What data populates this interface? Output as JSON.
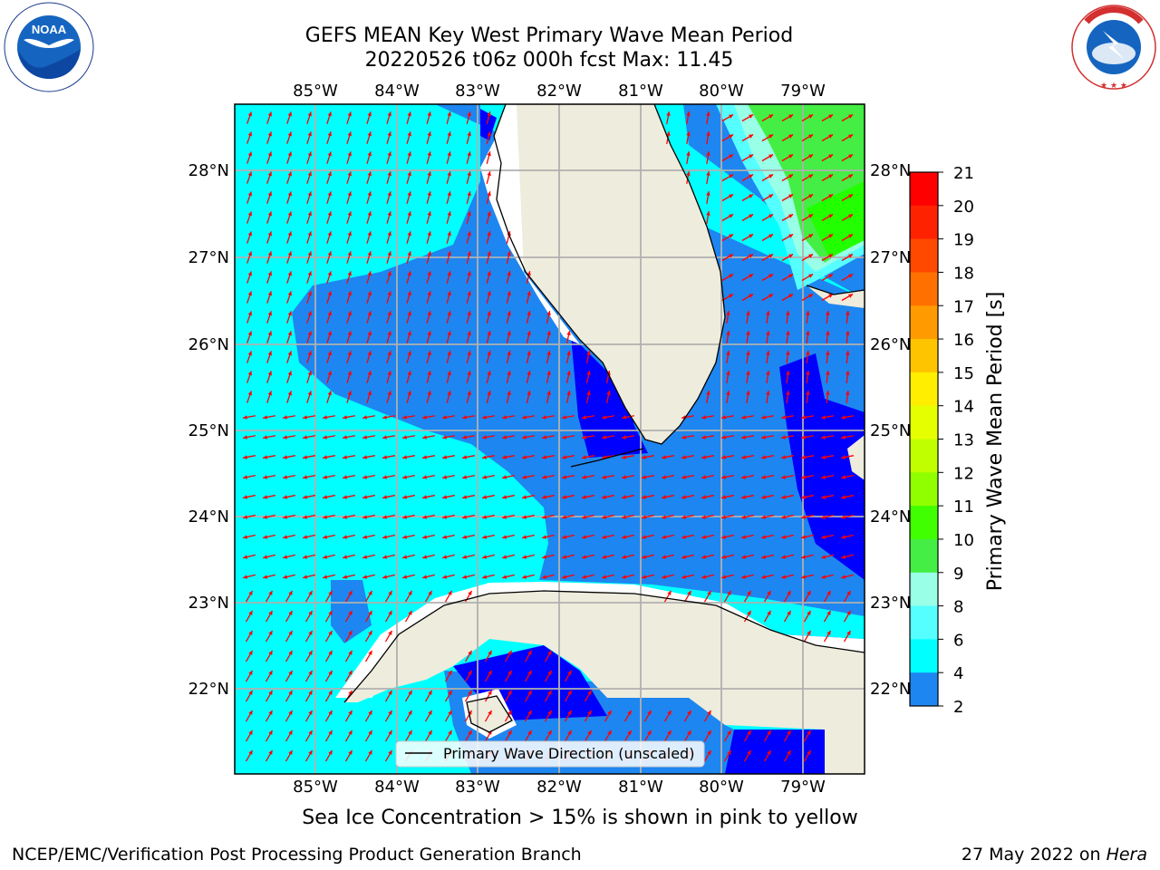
{
  "title": {
    "line1": "GEFS MEAN Key West Primary Wave Mean Period",
    "line2": "20220526 t06z 000h fcst   Max: 11.45"
  },
  "logos": {
    "left": "noaa-logo",
    "left_text": "NOAA",
    "right": "nws-logo",
    "right_ring_text": "NATIONAL WEATHER SERVICE"
  },
  "map": {
    "lon_labels": [
      "85°W",
      "84°W",
      "83°W",
      "82°W",
      "81°W",
      "80°W",
      "79°W"
    ],
    "lat_labels": [
      "28°N",
      "27°N",
      "26°N",
      "25°N",
      "24°N",
      "23°N",
      "22°N"
    ],
    "legend_label": "Primary Wave Direction (unscaled)",
    "colors": {
      "land": "#eeecdc",
      "c2_4": "#0000ff",
      "c4_6": "#1e86f0",
      "c6_8": "#00ffff",
      "c8_9": "#55ffff",
      "c9_10": "#99ffe6",
      "c10_11": "#44ee44",
      "c11_12": "#22ff00",
      "arrow": "#ff0000",
      "grid": "#b0b0b0"
    }
  },
  "colorbar": {
    "label": "Primary Wave Mean Period [s]",
    "ticks": [
      "21",
      "20",
      "19",
      "18",
      "17",
      "16",
      "15",
      "14",
      "13",
      "12",
      "11",
      "10",
      "9",
      "8",
      "6",
      "4",
      "2"
    ],
    "colors": [
      "#ff0000",
      "#ff2200",
      "#ff4800",
      "#ff7000",
      "#ff9a00",
      "#ffc400",
      "#ffee00",
      "#e6ff00",
      "#c0ff00",
      "#90ff00",
      "#40ff00",
      "#44ee44",
      "#99ffe6",
      "#55ffff",
      "#00ffff",
      "#1e86f0",
      "#0000ff"
    ]
  },
  "ice_note": "Sea Ice Concentration > 15% is shown in pink to yellow",
  "footer": {
    "left": "NCEP/EMC/Verification Post Processing Product Generation Branch",
    "right_date": "27 May 2022 on ",
    "right_host": "Hera"
  }
}
